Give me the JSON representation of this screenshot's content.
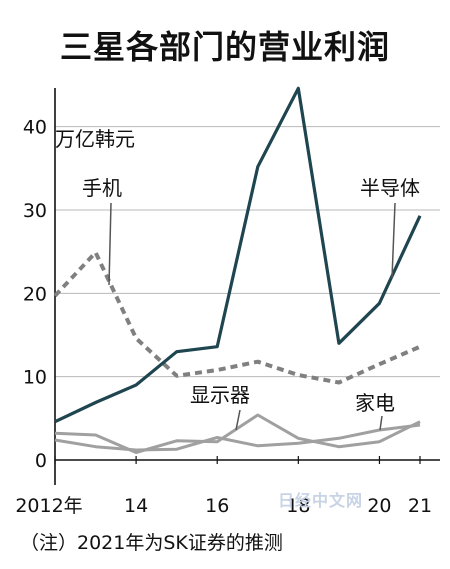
{
  "title": "三星各部门的营业利润",
  "note": "（注）2021年为SK证券的推测",
  "watermark": "日经中文网",
  "chart_data": {
    "type": "line",
    "title": "三星各部门的营业利润",
    "ylabel": "万亿韩元",
    "ylim": [
      0,
      45
    ],
    "x": [
      2012,
      2013,
      2014,
      2015,
      2016,
      2017,
      2018,
      2019,
      2020,
      2021
    ],
    "xticks": [
      2012,
      2014,
      2016,
      2018,
      2020,
      2021
    ],
    "xtick_labels": [
      "2012年",
      "14",
      "16",
      "18",
      "20",
      "21"
    ],
    "yticks": [
      0,
      10,
      20,
      30,
      40
    ],
    "ytick_labels": [
      "0",
      "10",
      "20",
      "30",
      "40"
    ],
    "series": [
      {
        "name": "半导体",
        "color": "#1f4550",
        "style": "solid",
        "values": [
          4.6,
          6.9,
          9.0,
          13.0,
          13.6,
          35.2,
          44.6,
          14.0,
          18.8,
          29.3
        ]
      },
      {
        "name": "手机",
        "color": "#808080",
        "style": "dashed",
        "values": [
          19.7,
          24.9,
          14.6,
          10.1,
          10.8,
          11.8,
          10.2,
          9.3,
          11.5,
          13.6
        ]
      },
      {
        "name": "显示器",
        "color": "#a0a0a0",
        "style": "solid",
        "values": [
          3.2,
          3.0,
          0.9,
          2.3,
          2.2,
          5.4,
          2.6,
          1.6,
          2.2,
          4.6
        ]
      },
      {
        "name": "家电",
        "color": "#a0a0a0",
        "style": "solid",
        "values": [
          2.4,
          1.6,
          1.2,
          1.3,
          2.7,
          1.7,
          2.0,
          2.6,
          3.6,
          4.2
        ]
      }
    ]
  }
}
